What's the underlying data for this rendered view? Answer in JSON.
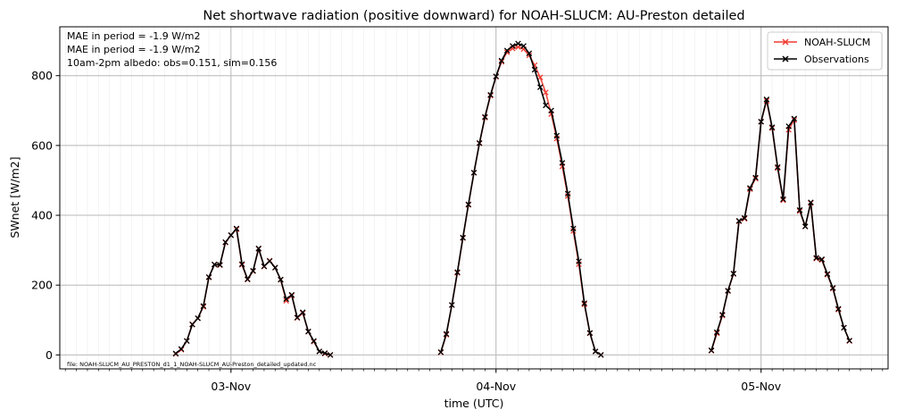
{
  "chart_data": {
    "type": "line",
    "title": "Net shortwave radiation (positive downward) for NOAH-SLUCM: AU-Preston detailed",
    "xlabel": "time (UTC)",
    "ylabel": "SWnet [W/m2]",
    "xlim": [
      "2012-11-02T08:30",
      "2012-11-05T11:30"
    ],
    "ylim": [
      -40,
      940
    ],
    "yticks": [
      0,
      200,
      400,
      600,
      800
    ],
    "xticks": [
      {
        "t": "2012-11-03T00:00",
        "label": "03-Nov"
      },
      {
        "t": "2012-11-04T00:00",
        "label": "04-Nov"
      },
      {
        "t": "2012-11-05T00:00",
        "label": "05-Nov"
      }
    ],
    "grid": true,
    "legend_position": "top-right",
    "annotations": [
      "MAE in period = -1.9 W/m2",
      "MAE in period = -1.9 W/m2",
      "10am-2pm albedo: obs=0.151, sim=0.156"
    ],
    "file_label": "file: NOAH-SLUCM_AU_PRESTON_d1_1_NOAH-SLUCM_AU-Preston_detailed_updated.nc",
    "series": [
      {
        "name": "NOAH-SLUCM",
        "color": "#f03c32",
        "marker": "x",
        "segments": [
          {
            "start": "2012-11-02T19:00",
            "step_minutes": 30,
            "values": [
              3,
              15,
              40,
              88,
              105,
              138,
              222,
              259,
              257,
              322,
              343,
              360,
              258,
              216,
              240,
              304,
              253,
              270,
              250,
              215,
              155,
              170,
              106,
              120,
              67,
              38,
              10,
              4,
              0
            ]
          },
          {
            "start": "2012-11-03T19:00",
            "step_minutes": 30,
            "values": [
              7,
              58,
              143,
              235,
              335,
              430,
              522,
              606,
              680,
              743,
              797,
              840,
              867,
              878,
              882,
              876,
              858,
              830,
              795,
              752,
              690,
              620,
              540,
              455,
              355,
              260,
              145,
              62,
              10,
              0
            ]
          },
          {
            "start": "2012-11-04T19:30",
            "step_minutes": 30,
            "values": [
              12,
              62,
              113,
              183,
              232,
              383,
              390,
              475,
              505,
              668,
              728,
              650,
              535,
              443,
              645,
              673,
              412,
              368,
              435,
              276,
              272,
              230,
              190,
              130,
              78,
              40
            ]
          }
        ]
      },
      {
        "name": "Observations",
        "color": "#000000",
        "marker": "x",
        "segments": [
          {
            "start": "2012-11-02T19:00",
            "step_minutes": 30,
            "values": [
              4,
              17,
              40,
              87,
              105,
              140,
              223,
              259,
              258,
              323,
              343,
              362,
              260,
              217,
              241,
              305,
              254,
              269,
              250,
              216,
              160,
              172,
              107,
              122,
              67,
              40,
              10,
              5,
              0
            ]
          },
          {
            "start": "2012-11-03T19:00",
            "step_minutes": 30,
            "values": [
              8,
              60,
              143,
              237,
              336,
              431,
              522,
              607,
              682,
              745,
              798,
              843,
              872,
              885,
              892,
              885,
              864,
              817,
              767,
              715,
              700,
              628,
              550,
              462,
              362,
              268,
              148,
              63,
              10,
              0
            ]
          },
          {
            "start": "2012-11-04T19:30",
            "step_minutes": 30,
            "values": [
              13,
              65,
              115,
              184,
              233,
              384,
              392,
              478,
              508,
              668,
              732,
              652,
              538,
              446,
              655,
              677,
              415,
              368,
              437,
              278,
              274,
              232,
              192,
              132,
              78,
              41
            ]
          }
        ]
      }
    ]
  }
}
